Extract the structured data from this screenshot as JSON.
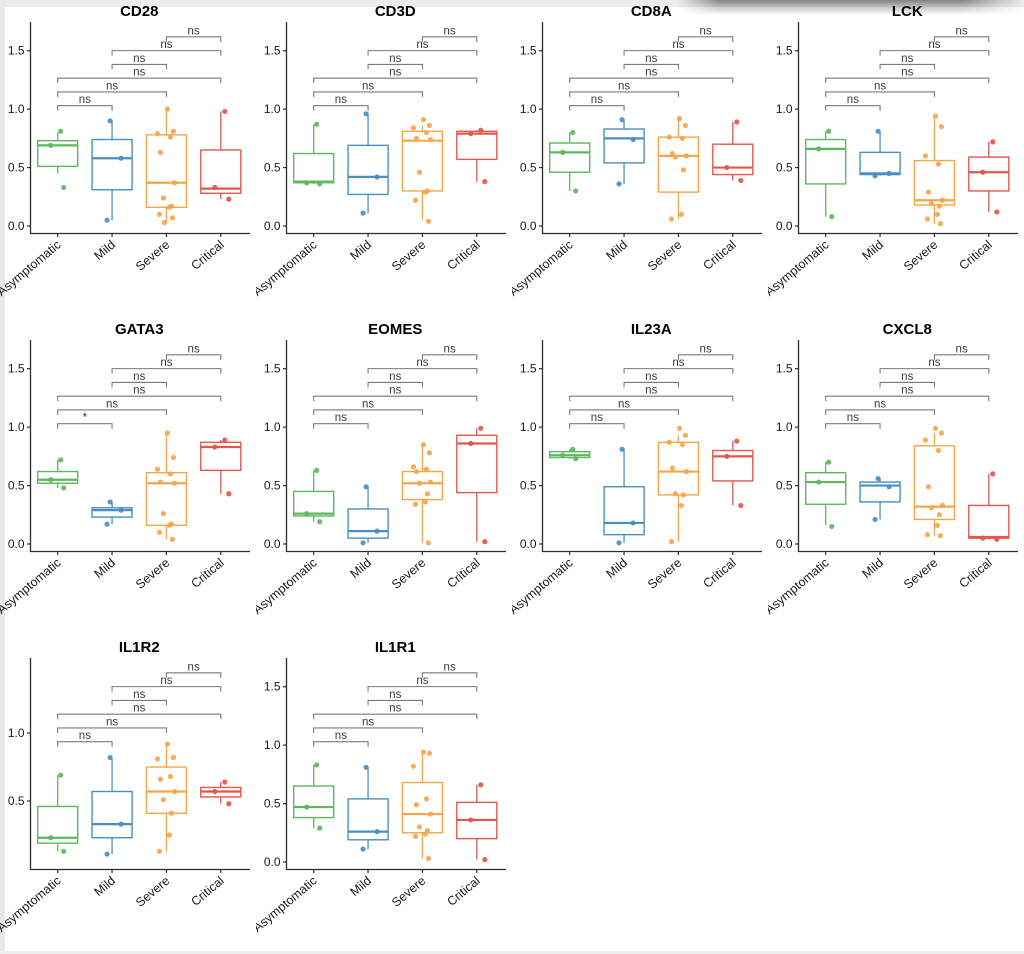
{
  "figure_title": "",
  "chart_data": {
    "type": "boxplot-grid",
    "description": "Grid of gene-expression boxplots with jittered points across four COVID-19 severity groups, with pairwise significance brackets",
    "categories": [
      "Asymptomatic",
      "Mild",
      "Severe",
      "Critical"
    ],
    "group_colors": [
      "#5cb85c",
      "#4a8fc2",
      "#f5a54b",
      "#e0574c"
    ],
    "bracket_color": "#7a7a7a",
    "sig_text_color": "#3a3a3a",
    "axis_color": "#2b2b2b",
    "comparisons": [
      [
        0,
        1
      ],
      [
        0,
        2
      ],
      [
        0,
        3
      ],
      [
        1,
        2
      ],
      [
        1,
        3
      ],
      [
        2,
        3
      ]
    ],
    "default_ylim": [
      -0.06,
      1.72
    ],
    "default_yticks": [
      0.0,
      0.5,
      1.0,
      1.5
    ],
    "panels": [
      {
        "title": "CD28",
        "ylim": [
          -0.06,
          1.72
        ],
        "yticks": [
          0.0,
          0.5,
          1.0,
          1.5
        ],
        "significance": [
          "ns",
          "ns",
          "ns",
          "ns",
          "ns",
          "ns"
        ],
        "boxes": [
          {
            "group": "Asymptomatic",
            "lo": 0.45,
            "q1": 0.51,
            "median": 0.69,
            "q3": 0.73,
            "hi": 0.8,
            "points": [
              0.81,
              0.69,
              0.33
            ]
          },
          {
            "group": "Mild",
            "lo": 0.05,
            "q1": 0.31,
            "median": 0.58,
            "q3": 0.74,
            "hi": 0.9,
            "points": [
              0.9,
              0.58,
              0.05
            ]
          },
          {
            "group": "Severe",
            "lo": 0.03,
            "q1": 0.16,
            "median": 0.37,
            "q3": 0.78,
            "hi": 1.0,
            "points": [
              1.0,
              0.81,
              0.79,
              0.76,
              0.63,
              0.37,
              0.24,
              0.17,
              0.16,
              0.1,
              0.07,
              0.03
            ]
          },
          {
            "group": "Critical",
            "lo": 0.23,
            "q1": 0.28,
            "median": 0.32,
            "q3": 0.65,
            "hi": 0.98,
            "points": [
              0.98,
              0.33,
              0.23
            ]
          }
        ]
      },
      {
        "title": "CD3D",
        "ylim": [
          -0.06,
          1.72
        ],
        "yticks": [
          0.0,
          0.5,
          1.0,
          1.5
        ],
        "significance": [
          "ns",
          "ns",
          "ns",
          "ns",
          "ns",
          "ns"
        ],
        "boxes": [
          {
            "group": "Asymptomatic",
            "lo": 0.36,
            "q1": 0.37,
            "median": 0.38,
            "q3": 0.62,
            "hi": 0.87,
            "points": [
              0.87,
              0.37,
              0.36
            ]
          },
          {
            "group": "Mild",
            "lo": 0.11,
            "q1": 0.27,
            "median": 0.42,
            "q3": 0.69,
            "hi": 0.96,
            "points": [
              0.96,
              0.42,
              0.11
            ]
          },
          {
            "group": "Severe",
            "lo": 0.05,
            "q1": 0.3,
            "median": 0.73,
            "q3": 0.81,
            "hi": 0.86,
            "points": [
              0.91,
              0.86,
              0.84,
              0.8,
              0.75,
              0.74,
              0.46,
              0.3,
              0.29,
              0.22,
              0.04
            ]
          },
          {
            "group": "Critical",
            "lo": 0.38,
            "q1": 0.57,
            "median": 0.79,
            "q3": 0.81,
            "hi": 0.82,
            "points": [
              0.82,
              0.79,
              0.38
            ]
          }
        ]
      },
      {
        "title": "CD8A",
        "ylim": [
          -0.06,
          1.72
        ],
        "yticks": [
          0.0,
          0.5,
          1.0,
          1.5
        ],
        "significance": [
          "ns",
          "ns",
          "ns",
          "ns",
          "ns",
          "ns"
        ],
        "boxes": [
          {
            "group": "Asymptomatic",
            "lo": 0.3,
            "q1": 0.46,
            "median": 0.63,
            "q3": 0.71,
            "hi": 0.8,
            "points": [
              0.8,
              0.63,
              0.3
            ]
          },
          {
            "group": "Mild",
            "lo": 0.36,
            "q1": 0.54,
            "median": 0.75,
            "q3": 0.83,
            "hi": 0.91,
            "points": [
              0.91,
              0.74,
              0.36
            ]
          },
          {
            "group": "Severe",
            "lo": 0.06,
            "q1": 0.29,
            "median": 0.6,
            "q3": 0.76,
            "hi": 0.92,
            "points": [
              0.92,
              0.86,
              0.76,
              0.75,
              0.62,
              0.6,
              0.59,
              0.48,
              0.1,
              0.06
            ]
          },
          {
            "group": "Critical",
            "lo": 0.39,
            "q1": 0.44,
            "median": 0.5,
            "q3": 0.7,
            "hi": 0.89,
            "points": [
              0.89,
              0.5,
              0.39
            ]
          }
        ]
      },
      {
        "title": "LCK",
        "ylim": [
          -0.06,
          1.72
        ],
        "yticks": [
          0.0,
          0.5,
          1.0,
          1.5
        ],
        "significance": [
          "ns",
          "ns",
          "ns",
          "ns",
          "ns",
          "ns"
        ],
        "boxes": [
          {
            "group": "Asymptomatic",
            "lo": 0.08,
            "q1": 0.36,
            "median": 0.66,
            "q3": 0.74,
            "hi": 0.81,
            "points": [
              0.81,
              0.66,
              0.08
            ]
          },
          {
            "group": "Mild",
            "lo": 0.43,
            "q1": 0.44,
            "median": 0.45,
            "q3": 0.63,
            "hi": 0.81,
            "points": [
              0.81,
              0.45,
              0.43
            ]
          },
          {
            "group": "Severe",
            "lo": 0.02,
            "q1": 0.18,
            "median": 0.22,
            "q3": 0.56,
            "hi": 0.94,
            "points": [
              0.94,
              0.85,
              0.6,
              0.53,
              0.29,
              0.22,
              0.19,
              0.17,
              0.1,
              0.06,
              0.02
            ]
          },
          {
            "group": "Critical",
            "lo": 0.12,
            "q1": 0.3,
            "median": 0.46,
            "q3": 0.59,
            "hi": 0.72,
            "points": [
              0.72,
              0.46,
              0.12
            ]
          }
        ]
      },
      {
        "title": "GATA3",
        "ylim": [
          -0.06,
          1.72
        ],
        "yticks": [
          0.0,
          0.5,
          1.0,
          1.5
        ],
        "significance": [
          "*",
          "ns",
          "ns",
          "ns",
          "ns",
          "ns"
        ],
        "boxes": [
          {
            "group": "Asymptomatic",
            "lo": 0.48,
            "q1": 0.52,
            "median": 0.55,
            "q3": 0.62,
            "hi": 0.72,
            "points": [
              0.72,
              0.55,
              0.48
            ]
          },
          {
            "group": "Mild",
            "lo": 0.17,
            "q1": 0.23,
            "median": 0.29,
            "q3": 0.31,
            "hi": 0.36,
            "points": [
              0.36,
              0.29,
              0.17
            ]
          },
          {
            "group": "Severe",
            "lo": 0.04,
            "q1": 0.16,
            "median": 0.52,
            "q3": 0.61,
            "hi": 0.95,
            "points": [
              0.95,
              0.74,
              0.64,
              0.6,
              0.53,
              0.52,
              0.26,
              0.17,
              0.16,
              0.1,
              0.04
            ]
          },
          {
            "group": "Critical",
            "lo": 0.43,
            "q1": 0.63,
            "median": 0.83,
            "q3": 0.87,
            "hi": 0.89,
            "points": [
              0.89,
              0.83,
              0.43
            ]
          }
        ]
      },
      {
        "title": "EOMES",
        "ylim": [
          -0.06,
          1.72
        ],
        "yticks": [
          0.0,
          0.5,
          1.0,
          1.5
        ],
        "significance": [
          "ns",
          "ns",
          "ns",
          "ns",
          "ns",
          "ns"
        ],
        "boxes": [
          {
            "group": "Asymptomatic",
            "lo": 0.19,
            "q1": 0.24,
            "median": 0.26,
            "q3": 0.45,
            "hi": 0.63,
            "points": [
              0.63,
              0.26,
              0.19
            ]
          },
          {
            "group": "Mild",
            "lo": 0.01,
            "q1": 0.05,
            "median": 0.11,
            "q3": 0.3,
            "hi": 0.49,
            "points": [
              0.49,
              0.11,
              0.01
            ]
          },
          {
            "group": "Severe",
            "lo": 0.01,
            "q1": 0.38,
            "median": 0.52,
            "q3": 0.62,
            "hi": 0.85,
            "points": [
              0.85,
              0.78,
              0.66,
              0.64,
              0.62,
              0.53,
              0.52,
              0.43,
              0.36,
              0.34,
              0.01
            ]
          },
          {
            "group": "Critical",
            "lo": 0.02,
            "q1": 0.44,
            "median": 0.86,
            "q3": 0.93,
            "hi": 0.99,
            "points": [
              0.99,
              0.86,
              0.02
            ]
          }
        ]
      },
      {
        "title": "IL23A",
        "ylim": [
          -0.06,
          1.72
        ],
        "yticks": [
          0.0,
          0.5,
          1.0,
          1.5
        ],
        "significance": [
          "ns",
          "ns",
          "ns",
          "ns",
          "ns",
          "ns"
        ],
        "boxes": [
          {
            "group": "Asymptomatic",
            "lo": 0.73,
            "q1": 0.74,
            "median": 0.76,
            "q3": 0.79,
            "hi": 0.81,
            "points": [
              0.81,
              0.76,
              0.73
            ]
          },
          {
            "group": "Mild",
            "lo": 0.01,
            "q1": 0.08,
            "median": 0.18,
            "q3": 0.49,
            "hi": 0.81,
            "points": [
              0.81,
              0.18,
              0.01
            ]
          },
          {
            "group": "Severe",
            "lo": 0.02,
            "q1": 0.42,
            "median": 0.62,
            "q3": 0.87,
            "hi": 0.93,
            "points": [
              0.99,
              0.93,
              0.87,
              0.85,
              0.65,
              0.62,
              0.43,
              0.42,
              0.33,
              0.02
            ]
          },
          {
            "group": "Critical",
            "lo": 0.33,
            "q1": 0.54,
            "median": 0.75,
            "q3": 0.8,
            "hi": 0.88,
            "points": [
              0.88,
              0.75,
              0.33
            ]
          }
        ]
      },
      {
        "title": "CXCL8",
        "ylim": [
          -0.06,
          1.72
        ],
        "yticks": [
          0.0,
          0.5,
          1.0,
          1.5
        ],
        "significance": [
          "ns",
          "ns",
          "ns",
          "ns",
          "ns",
          "ns"
        ],
        "boxes": [
          {
            "group": "Asymptomatic",
            "lo": 0.16,
            "q1": 0.34,
            "median": 0.53,
            "q3": 0.61,
            "hi": 0.7,
            "points": [
              0.7,
              0.53,
              0.15
            ]
          },
          {
            "group": "Mild",
            "lo": 0.21,
            "q1": 0.36,
            "median": 0.5,
            "q3": 0.53,
            "hi": 0.56,
            "points": [
              0.56,
              0.49,
              0.21
            ]
          },
          {
            "group": "Severe",
            "lo": 0.07,
            "q1": 0.21,
            "median": 0.32,
            "q3": 0.84,
            "hi": 0.95,
            "points": [
              0.99,
              0.95,
              0.89,
              0.8,
              0.49,
              0.33,
              0.31,
              0.25,
              0.16,
              0.08,
              0.07
            ]
          },
          {
            "group": "Critical",
            "lo": 0.04,
            "q1": 0.05,
            "median": 0.06,
            "q3": 0.33,
            "hi": 0.6,
            "points": [
              0.6,
              0.05,
              0.04
            ]
          }
        ]
      },
      {
        "title": "IL1R2",
        "ylim": [
          0.0,
          1.53
        ],
        "yticks": [
          0.5,
          1.0
        ],
        "significance": [
          "ns",
          "ns",
          "ns",
          "ns",
          "ns",
          "ns"
        ],
        "boxes": [
          {
            "group": "Asymptomatic",
            "lo": 0.13,
            "q1": 0.19,
            "median": 0.23,
            "q3": 0.46,
            "hi": 0.69,
            "points": [
              0.69,
              0.23,
              0.13
            ]
          },
          {
            "group": "Mild",
            "lo": 0.11,
            "q1": 0.23,
            "median": 0.33,
            "q3": 0.57,
            "hi": 0.81,
            "points": [
              0.82,
              0.33,
              0.11
            ]
          },
          {
            "group": "Severe",
            "lo": 0.13,
            "q1": 0.41,
            "median": 0.57,
            "q3": 0.75,
            "hi": 0.92,
            "points": [
              0.92,
              0.82,
              0.81,
              0.68,
              0.66,
              0.57,
              0.51,
              0.41,
              0.25,
              0.13
            ]
          },
          {
            "group": "Critical",
            "lo": 0.48,
            "q1": 0.53,
            "median": 0.57,
            "q3": 0.6,
            "hi": 0.64,
            "points": [
              0.64,
              0.57,
              0.48
            ]
          }
        ]
      },
      {
        "title": "IL1R1",
        "ylim": [
          -0.06,
          1.72
        ],
        "yticks": [
          0.0,
          0.5,
          1.0,
          1.5
        ],
        "significance": [
          "ns",
          "ns",
          "ns",
          "ns",
          "ns",
          "ns"
        ],
        "boxes": [
          {
            "group": "Asymptomatic",
            "lo": 0.29,
            "q1": 0.38,
            "median": 0.47,
            "q3": 0.65,
            "hi": 0.83,
            "points": [
              0.83,
              0.47,
              0.29
            ]
          },
          {
            "group": "Mild",
            "lo": 0.11,
            "q1": 0.19,
            "median": 0.26,
            "q3": 0.54,
            "hi": 0.81,
            "points": [
              0.81,
              0.26,
              0.11
            ]
          },
          {
            "group": "Severe",
            "lo": 0.03,
            "q1": 0.25,
            "median": 0.41,
            "q3": 0.68,
            "hi": 0.93,
            "points": [
              0.94,
              0.93,
              0.82,
              0.54,
              0.49,
              0.41,
              0.3,
              0.27,
              0.24,
              0.22,
              0.03
            ]
          },
          {
            "group": "Critical",
            "lo": 0.02,
            "q1": 0.2,
            "median": 0.36,
            "q3": 0.51,
            "hi": 0.66,
            "points": [
              0.66,
              0.36,
              0.02
            ]
          }
        ]
      }
    ]
  }
}
